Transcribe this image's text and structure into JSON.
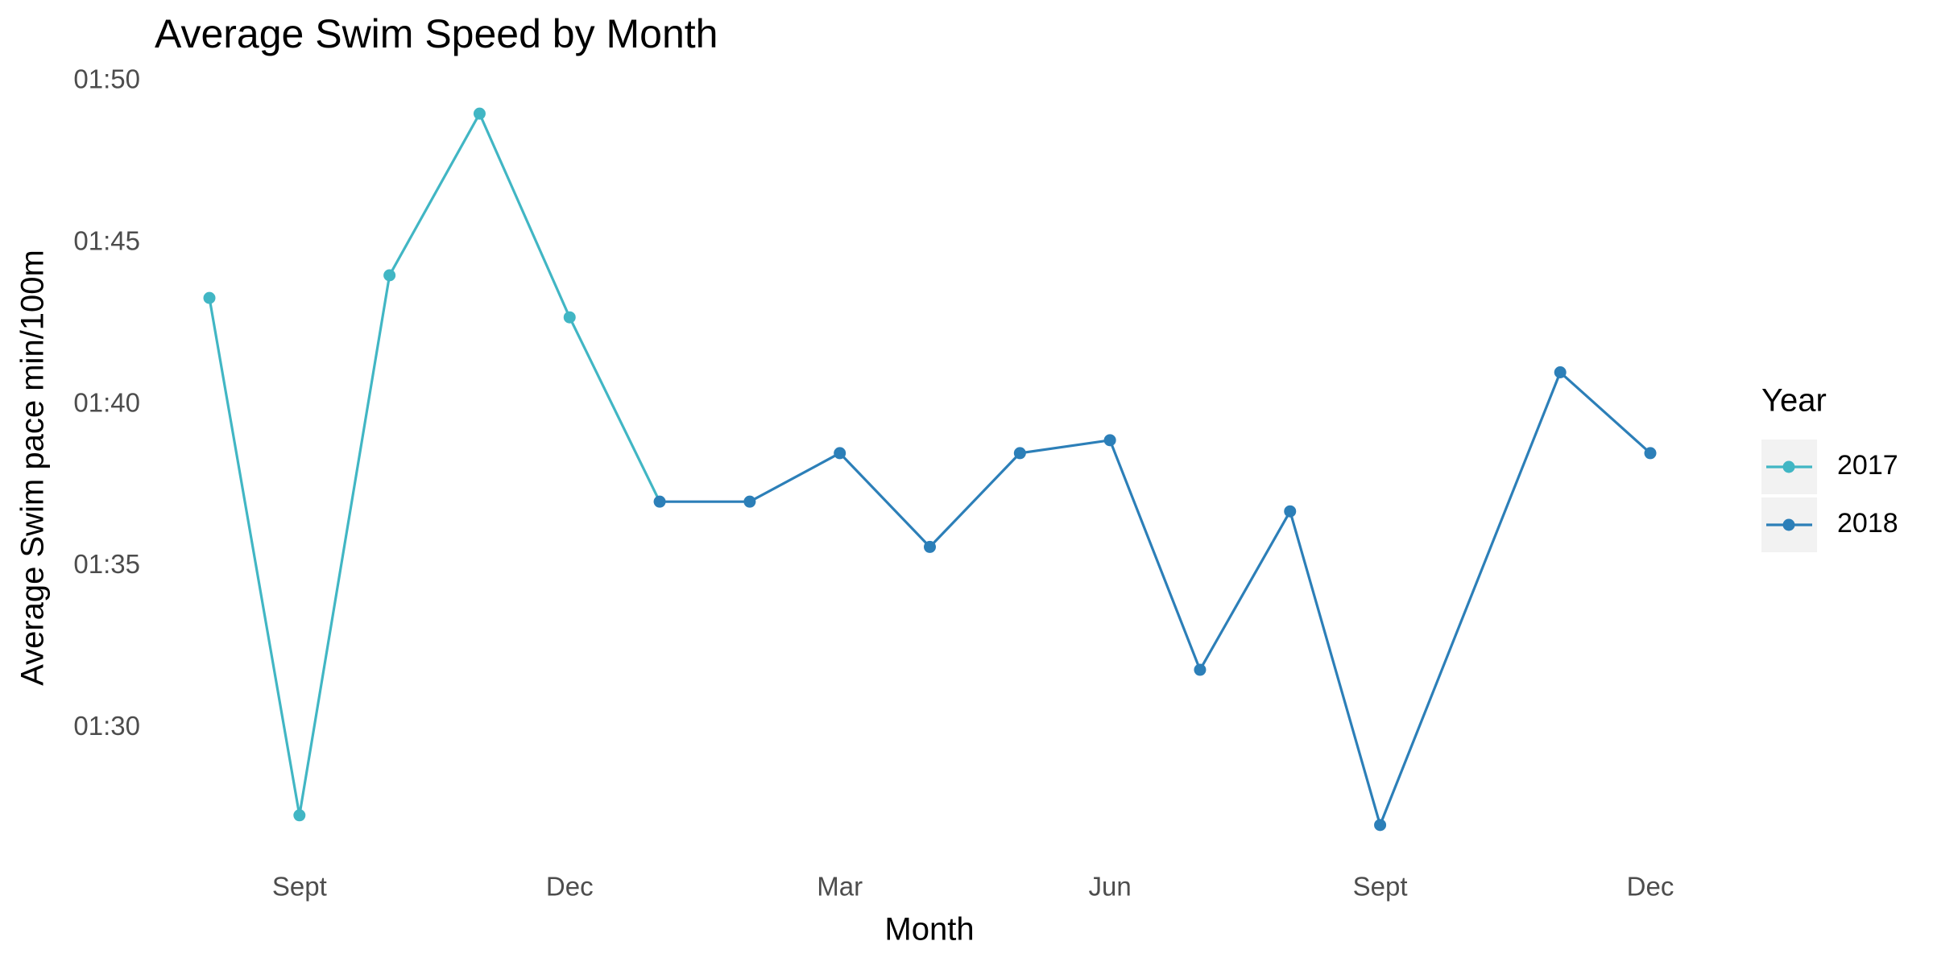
{
  "chart_data": {
    "type": "line",
    "title": "Average Swim Speed by Month",
    "x_label": "Month",
    "y_label": "Average Swim pace min/100m",
    "categories": [
      null,
      "Sept",
      null,
      null,
      "Dec",
      null,
      null,
      "Mar",
      null,
      null,
      "Jun",
      null,
      null,
      "Sept",
      null,
      null,
      "Dec"
    ],
    "series": [
      {
        "name": "2017",
        "color": "#41b6c4",
        "values": [
          103.3,
          87.3,
          104.0,
          109.0,
          102.7,
          null,
          null,
          null,
          null,
          null,
          null,
          null,
          null,
          null,
          null,
          null,
          null
        ]
      },
      {
        "name": "2018",
        "color": "#2c7fb8",
        "values": [
          null,
          null,
          null,
          null,
          null,
          97.0,
          97.0,
          98.5,
          95.6,
          98.5,
          98.9,
          91.8,
          96.7,
          87.0,
          null,
          101.0,
          98.5
        ]
      }
    ],
    "legend_title": "Year",
    "legend_position": "right",
    "ylim": [
      85.9,
      110.1
    ],
    "yticks": [
      {
        "value": 90,
        "label": "01:30"
      },
      {
        "value": 95,
        "label": "01:35"
      },
      {
        "value": 100,
        "label": "01:40"
      },
      {
        "value": 105,
        "label": "01:45"
      },
      {
        "value": 110,
        "label": "01:50"
      }
    ],
    "grid": false
  }
}
